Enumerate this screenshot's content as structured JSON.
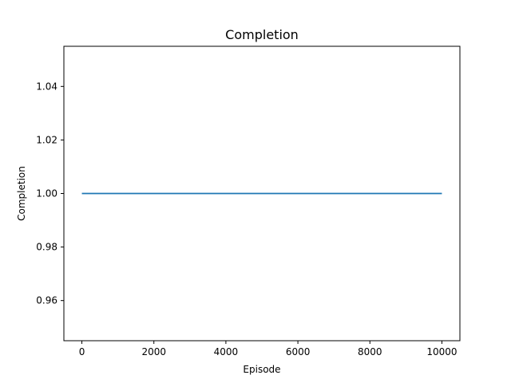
{
  "chart_data": {
    "type": "line",
    "title": "Completion",
    "xlabel": "Episode",
    "ylabel": "Completion",
    "xlim": [
      -500,
      10500
    ],
    "ylim": [
      0.945,
      1.055
    ],
    "x_ticks": [
      0,
      2000,
      4000,
      6000,
      8000,
      10000
    ],
    "x_tick_labels": [
      "0",
      "2000",
      "4000",
      "6000",
      "8000",
      "10000"
    ],
    "y_ticks": [
      0.96,
      0.98,
      1.0,
      1.02,
      1.04
    ],
    "y_tick_labels": [
      "0.96",
      "0.98",
      "1.00",
      "1.02",
      "1.04"
    ],
    "grid": false,
    "series": [
      {
        "color": "#1f77b4",
        "x": [
          0,
          10000
        ],
        "y": [
          1.0,
          1.0
        ]
      }
    ]
  }
}
